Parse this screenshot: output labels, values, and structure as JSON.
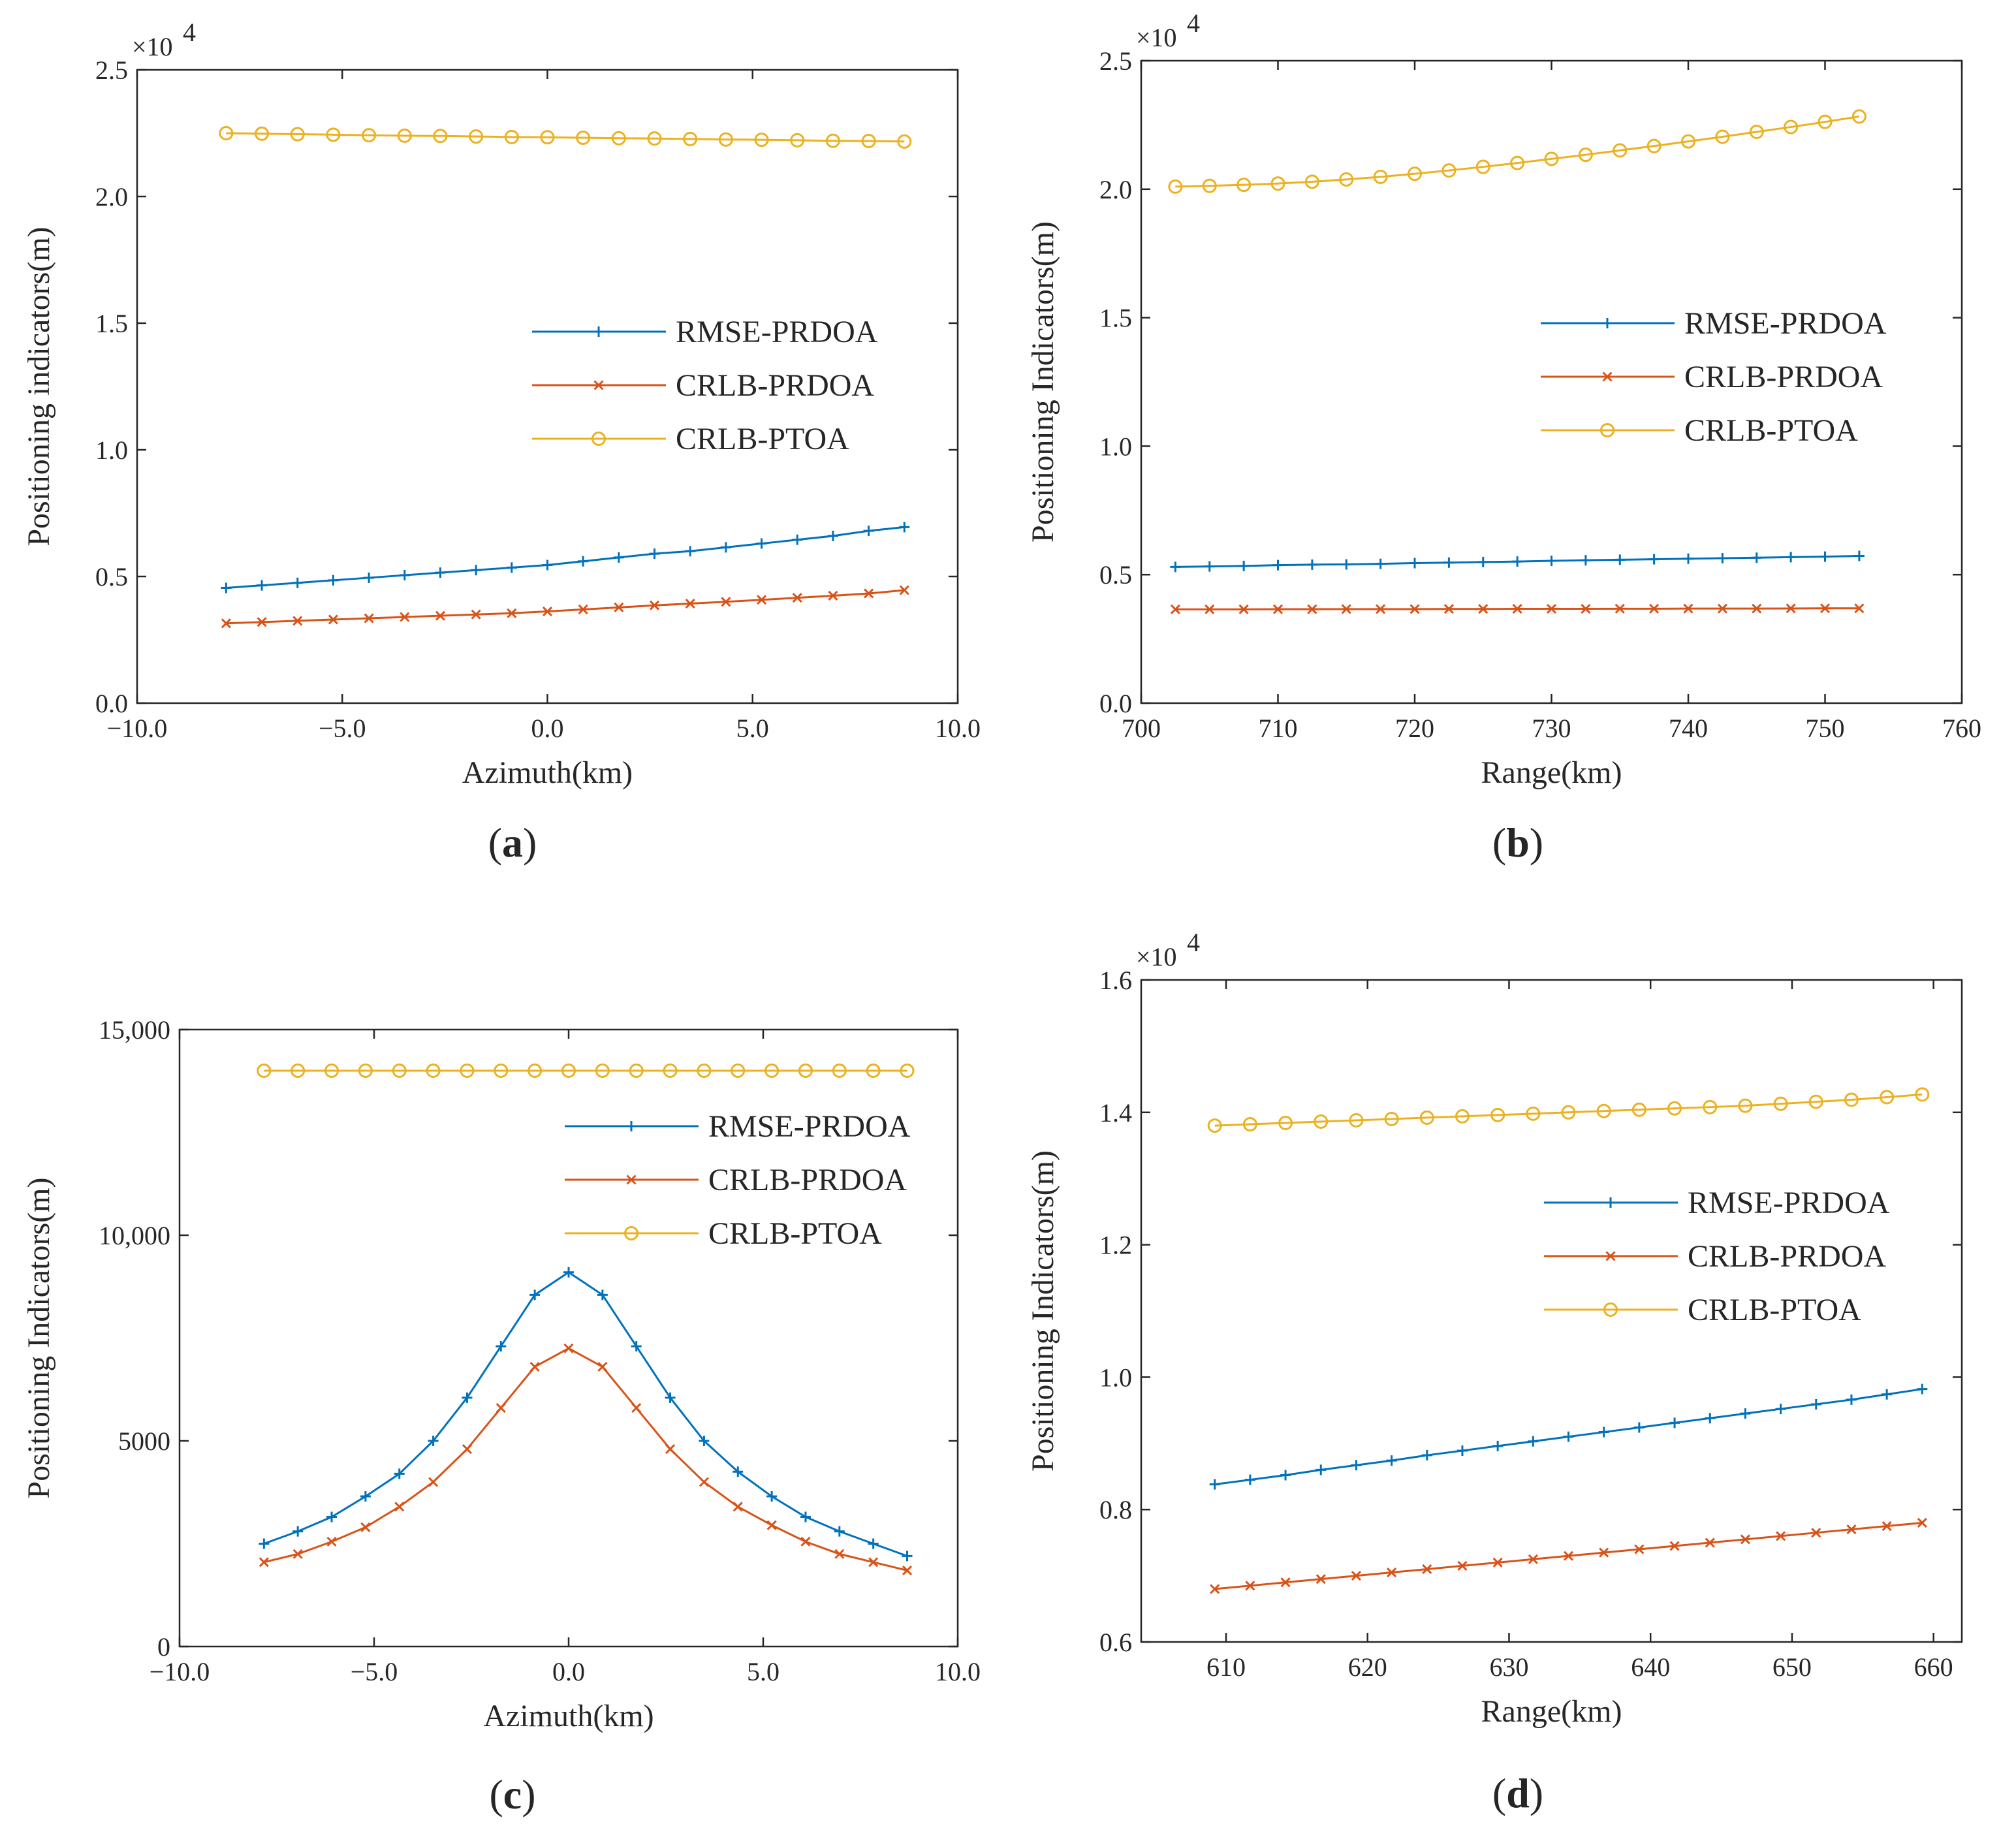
{
  "colors": {
    "rmse": "#0072BD",
    "crlb_prdoa": "#D95319",
    "crlb_ptoa": "#EDB120",
    "axis": "#262626"
  },
  "chart_data": [
    {
      "id": "a",
      "type": "line",
      "panel_label": {
        "open": "(",
        "letter": "a",
        "close": ")"
      },
      "xlabel": "Azimuth(km)",
      "ylabel": "Positioning indicators(m)",
      "xlim": [
        -10,
        10
      ],
      "ylim": [
        0,
        25000
      ],
      "xticks": [
        -10,
        -5,
        0,
        5,
        10
      ],
      "xtick_labels": [
        "−10.0",
        "−5.0",
        "0.0",
        "5.0",
        "10.0"
      ],
      "yticks": [
        0,
        5000,
        10000,
        15000,
        20000,
        25000
      ],
      "ytick_labels": [
        "0.0",
        "0.5",
        "1.0",
        "1.5",
        "2.0",
        "2.5"
      ],
      "multiplier": {
        "base": "×10",
        "exponent": "4"
      },
      "x": [
        -7.83,
        -6.96,
        -6.09,
        -5.22,
        -4.35,
        -3.48,
        -2.61,
        -1.74,
        -0.87,
        0.0,
        0.87,
        1.74,
        2.61,
        3.48,
        4.35,
        5.22,
        6.09,
        6.96,
        7.83,
        8.7
      ],
      "series": [
        {
          "name": "RMSE-PRDOA",
          "marker": "plus",
          "color": "#0072BD",
          "values": [
            4550,
            4650,
            4750,
            4850,
            4950,
            5050,
            5150,
            5250,
            5350,
            5450,
            5600,
            5750,
            5900,
            6000,
            6150,
            6300,
            6450,
            6600,
            6800,
            6950
          ]
        },
        {
          "name": "CRLB-PRDOA",
          "marker": "cross",
          "color": "#D95319",
          "values": [
            3150,
            3200,
            3250,
            3300,
            3350,
            3400,
            3450,
            3500,
            3550,
            3620,
            3700,
            3780,
            3860,
            3930,
            4000,
            4080,
            4160,
            4240,
            4330,
            4460
          ]
        },
        {
          "name": "CRLB-PTOA",
          "marker": "circle",
          "color": "#EDB120",
          "values": [
            22500,
            22480,
            22460,
            22440,
            22420,
            22400,
            22390,
            22370,
            22350,
            22340,
            22320,
            22300,
            22290,
            22270,
            22250,
            22240,
            22220,
            22200,
            22190,
            22170
          ]
        }
      ]
    },
    {
      "id": "b",
      "type": "line",
      "panel_label": {
        "open": "(",
        "letter": "b",
        "close": ")"
      },
      "xlabel": "Range(km)",
      "ylabel": "Positioning Indicators(m)",
      "xlim": [
        700,
        760
      ],
      "ylim": [
        0,
        25000
      ],
      "xticks": [
        700,
        710,
        720,
        730,
        740,
        750,
        760
      ],
      "xtick_labels": [
        "700",
        "710",
        "720",
        "730",
        "740",
        "750",
        "760"
      ],
      "yticks": [
        0,
        5000,
        10000,
        15000,
        20000,
        25000
      ],
      "ytick_labels": [
        "0.0",
        "0.5",
        "1.0",
        "1.5",
        "2.0",
        "2.5"
      ],
      "multiplier": {
        "base": "×10",
        "exponent": "4"
      },
      "x": [
        702.5,
        705,
        707.5,
        710,
        712.5,
        715,
        717.5,
        720,
        722.5,
        725,
        727.5,
        730,
        732.5,
        735,
        737.5,
        740,
        742.5,
        745,
        747.5,
        750,
        752.5
      ],
      "series": [
        {
          "name": "RMSE-PRDOA",
          "marker": "plus",
          "color": "#0072BD",
          "values": [
            5300,
            5320,
            5340,
            5370,
            5390,
            5400,
            5420,
            5450,
            5470,
            5490,
            5510,
            5540,
            5560,
            5580,
            5600,
            5620,
            5640,
            5660,
            5680,
            5700,
            5730
          ]
        },
        {
          "name": "CRLB-PRDOA",
          "marker": "cross",
          "color": "#D95319",
          "values": [
            3650,
            3650,
            3650,
            3655,
            3655,
            3660,
            3660,
            3660,
            3665,
            3665,
            3670,
            3670,
            3670,
            3675,
            3675,
            3680,
            3680,
            3680,
            3685,
            3690,
            3690
          ]
        },
        {
          "name": "CRLB-PTOA",
          "marker": "circle",
          "color": "#EDB120",
          "values": [
            20100,
            20130,
            20170,
            20220,
            20290,
            20380,
            20480,
            20600,
            20730,
            20870,
            21020,
            21180,
            21340,
            21510,
            21680,
            21860,
            22040,
            22230,
            22420,
            22620,
            22830
          ]
        }
      ]
    },
    {
      "id": "c",
      "type": "line",
      "panel_label": {
        "open": "(",
        "letter": "c",
        "close": ")"
      },
      "xlabel": "Azimuth(km)",
      "ylabel": "Positioning Indicators(m)",
      "xlim": [
        -10,
        10
      ],
      "ylim": [
        0,
        15000
      ],
      "xticks": [
        -10,
        -5,
        0,
        5,
        10
      ],
      "xtick_labels": [
        "−10.0",
        "−5.0",
        "0.0",
        "5.0",
        "10.0"
      ],
      "yticks": [
        0,
        5000,
        10000,
        15000
      ],
      "ytick_labels": [
        "0",
        "5000",
        "10,000",
        "15,000"
      ],
      "x": [
        -7.83,
        -6.96,
        -6.09,
        -5.22,
        -4.35,
        -3.48,
        -2.61,
        -1.74,
        -0.87,
        0.0,
        0.87,
        1.74,
        2.61,
        3.48,
        4.35,
        5.22,
        6.09,
        6.96,
        7.83,
        8.7
      ],
      "series": [
        {
          "name": "RMSE-PRDOA",
          "marker": "plus",
          "color": "#0072BD",
          "values": [
            2500,
            2800,
            3150,
            3650,
            4200,
            5000,
            6050,
            7300,
            8550,
            9100,
            8550,
            7300,
            6050,
            5000,
            4250,
            3650,
            3150,
            2800,
            2500,
            2200
          ]
        },
        {
          "name": "CRLB-PRDOA",
          "marker": "cross",
          "color": "#D95319",
          "values": [
            2050,
            2250,
            2550,
            2900,
            3400,
            4000,
            4800,
            5800,
            6800,
            7250,
            6800,
            5800,
            4800,
            4000,
            3400,
            2950,
            2550,
            2250,
            2050,
            1850
          ]
        },
        {
          "name": "CRLB-PTOA",
          "marker": "circle",
          "color": "#EDB120",
          "values": [
            14000,
            14000,
            14000,
            14000,
            14000,
            14000,
            14000,
            14000,
            14000,
            14000,
            14000,
            14000,
            14000,
            14000,
            14000,
            14000,
            14000,
            14000,
            14000,
            14000
          ]
        }
      ]
    },
    {
      "id": "d",
      "type": "line",
      "panel_label": {
        "open": "(",
        "letter": "d",
        "close": ")"
      },
      "xlabel": "Range(km)",
      "ylabel": "Positioning Indicators(m)",
      "xlim": [
        604,
        662
      ],
      "ylim": [
        6000,
        16000
      ],
      "xticks": [
        610,
        620,
        630,
        640,
        650,
        660
      ],
      "xtick_labels": [
        "610",
        "620",
        "630",
        "640",
        "650",
        "660"
      ],
      "yticks": [
        6000,
        8000,
        10000,
        12000,
        14000,
        16000
      ],
      "ytick_labels": [
        "0.6",
        "0.8",
        "1.0",
        "1.2",
        "1.4",
        "1.6"
      ],
      "multiplier": {
        "base": "×10",
        "exponent": "4"
      },
      "x": [
        609.2,
        611.7,
        614.2,
        616.7,
        619.2,
        621.7,
        624.2,
        626.7,
        629.2,
        631.7,
        634.2,
        636.7,
        639.2,
        641.7,
        644.2,
        646.7,
        649.2,
        651.7,
        654.2,
        656.7,
        659.2
      ],
      "series": [
        {
          "name": "RMSE-PRDOA",
          "marker": "plus",
          "color": "#0072BD",
          "values": [
            8380,
            8450,
            8520,
            8600,
            8670,
            8740,
            8820,
            8890,
            8960,
            9030,
            9100,
            9170,
            9240,
            9310,
            9380,
            9450,
            9520,
            9590,
            9660,
            9740,
            9820
          ]
        },
        {
          "name": "CRLB-PRDOA",
          "marker": "cross",
          "color": "#D95319",
          "values": [
            6800,
            6850,
            6900,
            6950,
            7000,
            7050,
            7100,
            7150,
            7200,
            7250,
            7300,
            7350,
            7400,
            7450,
            7500,
            7550,
            7600,
            7650,
            7700,
            7750,
            7800
          ]
        },
        {
          "name": "CRLB-PTOA",
          "marker": "circle",
          "color": "#EDB120",
          "values": [
            13800,
            13820,
            13840,
            13860,
            13880,
            13900,
            13920,
            13940,
            13960,
            13980,
            14000,
            14020,
            14040,
            14060,
            14080,
            14100,
            14130,
            14160,
            14190,
            14230,
            14270
          ]
        }
      ]
    }
  ]
}
